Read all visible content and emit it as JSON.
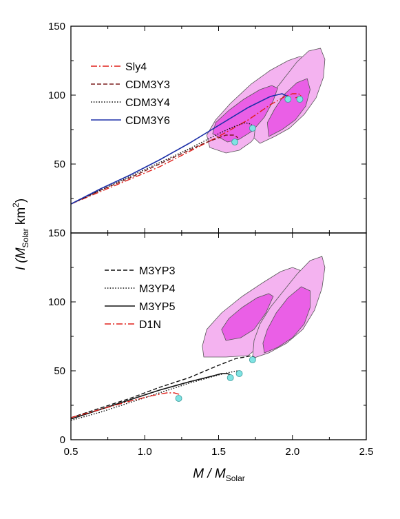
{
  "colors": {
    "contour_outer": "#f4b3f0",
    "contour_inner": "#ea5fe6",
    "contour_edge": "#555555",
    "marker_fill": "#7fe3e3",
    "marker_edge": "#3a9a9a"
  },
  "chart_data": [
    {
      "type": "line",
      "panel": "top",
      "xlim": [
        0.5,
        2.5
      ],
      "ylim": [
        0,
        150
      ],
      "y_ticks": [
        "50",
        "100",
        "150"
      ],
      "grid": false,
      "legend_position": "upper-left",
      "series": [
        {
          "name": "Sly4",
          "color": "#e0201a",
          "dash": "dashdot",
          "x": [
            0.5,
            0.7,
            0.9,
            1.1,
            1.3,
            1.5,
            1.7,
            1.85,
            1.95,
            2.0,
            2.04,
            2.06,
            2.05,
            2.02
          ],
          "y": [
            21,
            30,
            39,
            48,
            59,
            70,
            82,
            93,
            99,
            101,
            101,
            100,
            99,
            98
          ]
        },
        {
          "name": "CDM3Y3",
          "color": "#7a1a1a",
          "dash": "dash",
          "x": [
            0.5,
            0.7,
            0.9,
            1.1,
            1.3,
            1.4,
            1.5,
            1.55,
            1.6,
            1.62,
            1.63
          ],
          "y": [
            21,
            31,
            40,
            50,
            60,
            65,
            69,
            71,
            71,
            70,
            69
          ]
        },
        {
          "name": "CDM3Y4",
          "color": "#111111",
          "dash": "dot",
          "x": [
            0.5,
            0.7,
            0.9,
            1.1,
            1.3,
            1.5,
            1.6,
            1.68,
            1.72,
            1.73,
            1.72
          ],
          "y": [
            21,
            31,
            41,
            51,
            61,
            72,
            77,
            80,
            79,
            77,
            75
          ]
        },
        {
          "name": "CDM3Y6",
          "color": "#1c2fa8",
          "dash": "solid",
          "x": [
            0.5,
            0.7,
            0.9,
            1.1,
            1.3,
            1.5,
            1.7,
            1.85,
            1.93,
            1.97,
            1.98
          ],
          "y": [
            21,
            32,
            42,
            53,
            65,
            78,
            91,
            99,
            101,
            99,
            97
          ]
        }
      ],
      "markers": [
        {
          "x": 1.61,
          "y": 66
        },
        {
          "x": 1.73,
          "y": 76
        },
        {
          "x": 1.97,
          "y": 97
        },
        {
          "x": 2.05,
          "y": 97
        }
      ],
      "contours": [
        {
          "level": "outer",
          "points": [
            [
              1.55,
              58
            ],
            [
              1.64,
              60
            ],
            [
              1.72,
              66
            ],
            [
              1.82,
              79
            ],
            [
              1.92,
              96
            ],
            [
              2.02,
              111
            ],
            [
              2.08,
              121
            ],
            [
              2.1,
              127
            ],
            [
              2.05,
              128
            ],
            [
              1.97,
              125
            ],
            [
              1.85,
              118
            ],
            [
              1.72,
              108
            ],
            [
              1.58,
              94
            ],
            [
              1.48,
              82
            ],
            [
              1.42,
              71
            ],
            [
              1.44,
              62
            ]
          ]
        },
        {
          "level": "inner",
          "points": [
            [
              1.56,
              66
            ],
            [
              1.64,
              68
            ],
            [
              1.73,
              74
            ],
            [
              1.81,
              84
            ],
            [
              1.87,
              96
            ],
            [
              1.9,
              105
            ],
            [
              1.86,
              107
            ],
            [
              1.78,
              104
            ],
            [
              1.67,
              97
            ],
            [
              1.57,
              89
            ],
            [
              1.48,
              80
            ],
            [
              1.46,
              72
            ]
          ]
        },
        {
          "level": "outer",
          "points": [
            [
              1.78,
              65
            ],
            [
              1.88,
              70
            ],
            [
              1.98,
              76
            ],
            [
              2.08,
              86
            ],
            [
              2.16,
              98
            ],
            [
              2.21,
              113
            ],
            [
              2.22,
              126
            ],
            [
              2.19,
              134
            ],
            [
              2.11,
              132
            ],
            [
              2.03,
              124
            ],
            [
              1.95,
              113
            ],
            [
              1.87,
              102
            ],
            [
              1.8,
              90
            ],
            [
              1.75,
              78
            ],
            [
              1.74,
              69
            ]
          ]
        },
        {
          "level": "inner",
          "points": [
            [
              1.84,
              70
            ],
            [
              1.93,
              75
            ],
            [
              2.02,
              82
            ],
            [
              2.09,
              92
            ],
            [
              2.12,
              104
            ],
            [
              2.1,
              112
            ],
            [
              2.03,
              109
            ],
            [
              1.95,
              101
            ],
            [
              1.88,
              90
            ],
            [
              1.83,
              80
            ]
          ]
        }
      ]
    },
    {
      "type": "line",
      "panel": "bottom",
      "xlim": [
        0.5,
        2.5
      ],
      "ylim": [
        0,
        150
      ],
      "x_ticks": [
        "0.5",
        "1.0",
        "1.5",
        "2.0",
        "2.5"
      ],
      "y_ticks": [
        "0",
        "50",
        "100",
        "150"
      ],
      "xlabel": "M / M",
      "xlabel_sub": "Solar",
      "grid": false,
      "legend_position": "upper-left",
      "series": [
        {
          "name": "M3YP3",
          "color": "#111111",
          "dash": "dash",
          "x": [
            0.5,
            0.7,
            0.9,
            1.1,
            1.3,
            1.5,
            1.62,
            1.68,
            1.72,
            1.74,
            1.75
          ],
          "y": [
            16,
            23,
            30,
            38,
            45,
            54,
            59,
            60,
            61,
            60,
            59
          ]
        },
        {
          "name": "M3YP4",
          "color": "#111111",
          "dash": "dot",
          "x": [
            0.5,
            0.7,
            0.9,
            1.1,
            1.3,
            1.5,
            1.58,
            1.63,
            1.65,
            1.66
          ],
          "y": [
            14,
            20,
            27,
            34,
            41,
            47,
            49,
            50,
            49,
            48
          ]
        },
        {
          "name": "M3YP5",
          "color": "#111111",
          "dash": "solid",
          "x": [
            0.5,
            0.7,
            0.9,
            1.1,
            1.3,
            1.45,
            1.52,
            1.56,
            1.58,
            1.59
          ],
          "y": [
            15,
            22,
            29,
            36,
            42,
            46,
            48,
            48,
            47,
            46
          ]
        },
        {
          "name": "D1N",
          "color": "#e0201a",
          "dash": "dashdot",
          "x": [
            0.5,
            0.7,
            0.9,
            1.05,
            1.15,
            1.2,
            1.23,
            1.24
          ],
          "y": [
            16,
            22,
            28,
            32,
            34,
            34,
            33,
            31
          ]
        }
      ],
      "markers": [
        {
          "x": 1.23,
          "y": 30
        },
        {
          "x": 1.58,
          "y": 45
        },
        {
          "x": 1.64,
          "y": 48
        },
        {
          "x": 1.73,
          "y": 58
        }
      ],
      "contours": [
        {
          "level": "outer",
          "points": [
            [
              1.4,
              60
            ],
            [
              1.55,
              60
            ],
            [
              1.7,
              61
            ],
            [
              1.8,
              70
            ],
            [
              1.9,
              86
            ],
            [
              1.98,
              102
            ],
            [
              2.03,
              114
            ],
            [
              2.05,
              123
            ],
            [
              2.0,
              125
            ],
            [
              1.92,
              122
            ],
            [
              1.8,
              114
            ],
            [
              1.66,
              104
            ],
            [
              1.52,
              92
            ],
            [
              1.42,
              80
            ],
            [
              1.39,
              68
            ]
          ]
        },
        {
          "level": "inner",
          "points": [
            [
              1.55,
              72
            ],
            [
              1.65,
              74
            ],
            [
              1.74,
              80
            ],
            [
              1.82,
              92
            ],
            [
              1.87,
              104
            ],
            [
              1.84,
              106
            ],
            [
              1.76,
              103
            ],
            [
              1.66,
              96
            ],
            [
              1.57,
              88
            ],
            [
              1.52,
              80
            ]
          ]
        },
        {
          "level": "outer",
          "points": [
            [
              1.73,
              59
            ],
            [
              1.84,
              63
            ],
            [
              1.96,
              70
            ],
            [
              2.07,
              80
            ],
            [
              2.15,
              94
            ],
            [
              2.2,
              110
            ],
            [
              2.22,
              125
            ],
            [
              2.2,
              133
            ],
            [
              2.12,
              130
            ],
            [
              2.03,
              120
            ],
            [
              1.94,
              108
            ],
            [
              1.85,
              96
            ],
            [
              1.78,
              84
            ],
            [
              1.74,
              72
            ]
          ]
        },
        {
          "level": "inner",
          "points": [
            [
              1.81,
              63
            ],
            [
              1.9,
              67
            ],
            [
              2.0,
              74
            ],
            [
              2.08,
              84
            ],
            [
              2.12,
              96
            ],
            [
              2.12,
              108
            ],
            [
              2.06,
              111
            ],
            [
              1.97,
              103
            ],
            [
              1.89,
              92
            ],
            [
              1.83,
              80
            ],
            [
              1.8,
              70
            ]
          ]
        }
      ]
    }
  ],
  "y_axis_label": {
    "prefix": "I (M",
    "sub": "Solar",
    "unit": " km",
    "sup": "2",
    "suffix": ")"
  }
}
